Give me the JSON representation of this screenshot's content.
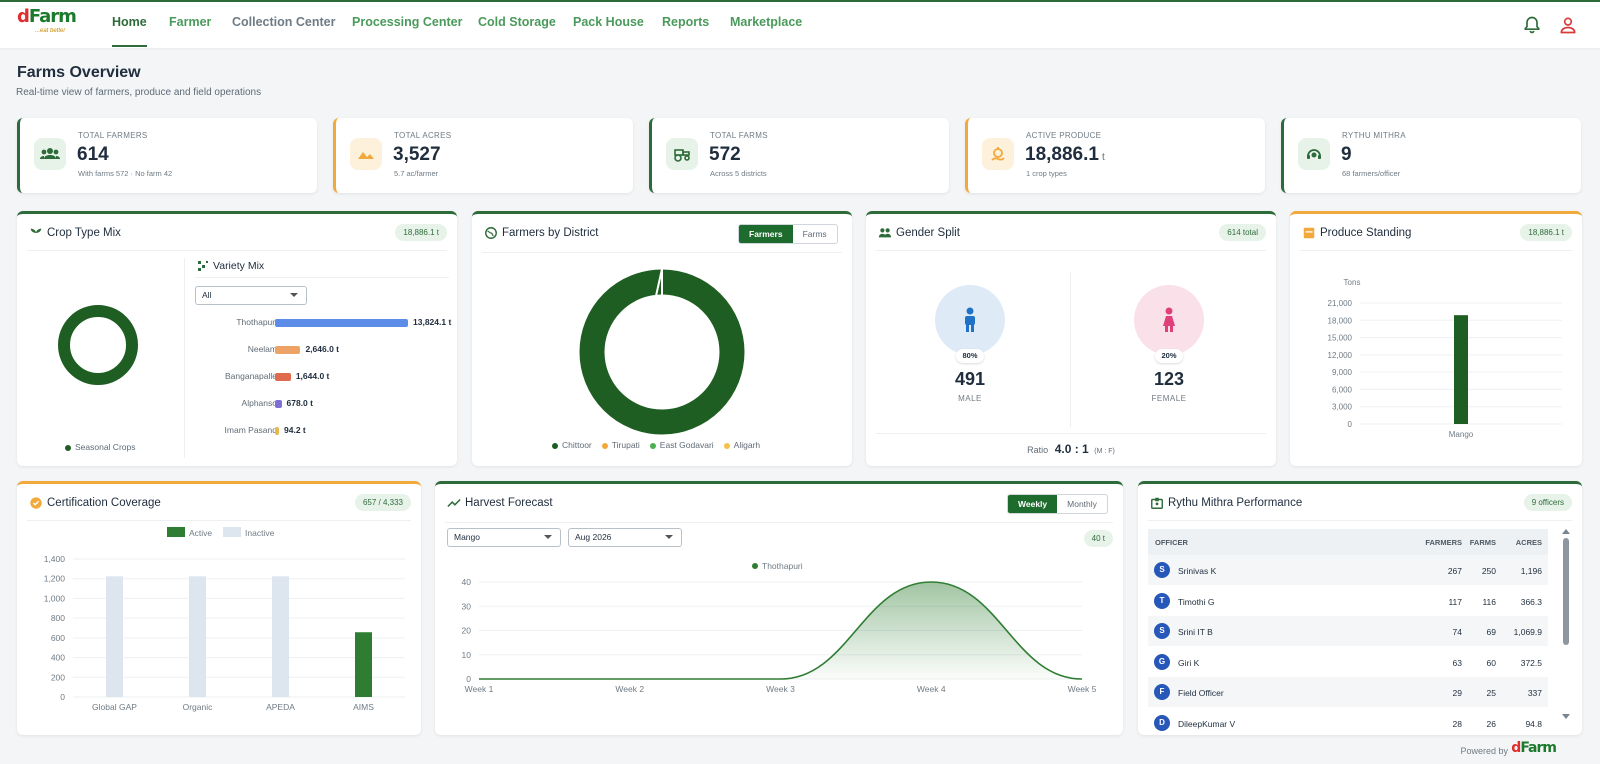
{
  "brand": {
    "logo_main": "dFarm",
    "logo_tag": "...eat better"
  },
  "nav": {
    "items": [
      "Home",
      "Farmer",
      "Collection Center",
      "Processing Center",
      "Cold Storage",
      "Pack House",
      "Reports",
      "Marketplace"
    ],
    "active": "Home"
  },
  "header": {
    "title": "Farms Overview",
    "subtitle": "Real-time view of farmers, produce and field operations"
  },
  "stats": [
    {
      "label": "TOTAL FARMERS",
      "value": "614",
      "unit": "",
      "sub": "With farms 572 · No farm 42",
      "icon": "users-icon",
      "accent": "#2e6b3a"
    },
    {
      "label": "TOTAL ACRES",
      "value": "3,527",
      "unit": "",
      "sub": "5.7 ac/farmer",
      "icon": "landscape-icon",
      "accent": "#f2a93b"
    },
    {
      "label": "TOTAL FARMS",
      "value": "572",
      "unit": "",
      "sub": "Across 5 districts",
      "icon": "tractor-icon",
      "accent": "#2e6b3a"
    },
    {
      "label": "ACTIVE PRODUCE",
      "value": "18,886.1",
      "unit": "t",
      "sub": "1 crop types",
      "icon": "produce-icon",
      "accent": "#f2a93b"
    },
    {
      "label": "RYTHU MITHRA",
      "value": "9",
      "unit": "",
      "sub": "68 farmers/officer",
      "icon": "support-agent-icon",
      "accent": "#2e6b3a"
    }
  ],
  "crop_mix": {
    "title": "Crop Type Mix",
    "badge": "18,886.1 t",
    "legend": "Seasonal Crops",
    "variety_title": "Variety Mix",
    "filter_value": "All",
    "varieties": [
      {
        "name": "Thothapuri",
        "value": 13824.1,
        "label": "13,824.1 t",
        "color": "#5b8de8"
      },
      {
        "name": "Neelam",
        "value": 2646.0,
        "label": "2,646.0 t",
        "color": "#eda365"
      },
      {
        "name": "Banganapalle",
        "value": 1644.0,
        "label": "1,644.0 t",
        "color": "#e06a4c"
      },
      {
        "name": "Alphanso",
        "value": 678.0,
        "label": "678.0 t",
        "color": "#7c6fd6"
      },
      {
        "name": "Imam Pasand",
        "value": 94.2,
        "label": "94.2 t",
        "color": "#e6b84a"
      }
    ]
  },
  "district": {
    "title": "Farmers by District",
    "toggle": [
      "Farmers",
      "Farms"
    ],
    "toggle_active": "Farmers",
    "legend": [
      {
        "name": "Chittoor",
        "color": "#1e5e23"
      },
      {
        "name": "Tirupati",
        "color": "#f2a93b"
      },
      {
        "name": "East Godavari",
        "color": "#4caf50"
      },
      {
        "name": "Aligarh",
        "color": "#f5c04a"
      }
    ]
  },
  "gender": {
    "title": "Gender Split",
    "badge": "614 total",
    "male": {
      "pct": "80%",
      "count": "491",
      "label": "MALE"
    },
    "female": {
      "pct": "20%",
      "count": "123",
      "label": "FEMALE"
    },
    "ratio_label": "Ratio",
    "ratio": "4.0 : 1",
    "ratio_note": "(M : F)"
  },
  "produce": {
    "title": "Produce Standing",
    "badge": "18,886.1 t"
  },
  "certification": {
    "title": "Certification Coverage",
    "badge": "657 / 4,333"
  },
  "harvest": {
    "title": "Harvest Forecast",
    "toggle": [
      "Weekly",
      "Monthly"
    ],
    "toggle_active": "Weekly",
    "crop_select": "Mango",
    "month_select": "Aug 2026",
    "badge": "40 t"
  },
  "rythu": {
    "title": "Rythu Mithra Performance",
    "badge": "9 officers",
    "columns": [
      "OFFICER",
      "FARMERS",
      "FARMS",
      "ACRES"
    ],
    "rows": [
      {
        "initial": "S",
        "name": "Srinivas K",
        "farmers": "267",
        "farms": "250",
        "acres": "1,196"
      },
      {
        "initial": "T",
        "name": "Timothi G",
        "farmers": "117",
        "farms": "116",
        "acres": "366.3"
      },
      {
        "initial": "S",
        "name": "Srini IT B",
        "farmers": "74",
        "farms": "69",
        "acres": "1,069.9"
      },
      {
        "initial": "G",
        "name": "Giri K",
        "farmers": "63",
        "farms": "60",
        "acres": "372.5"
      },
      {
        "initial": "F",
        "name": "Field Officer",
        "farmers": "29",
        "farms": "25",
        "acres": "337"
      },
      {
        "initial": "D",
        "name": "DileepKumar V",
        "farmers": "28",
        "farms": "26",
        "acres": "94.8"
      }
    ]
  },
  "footer": {
    "powered_by": "Powered by",
    "logo": "dFarm"
  },
  "chart_data": [
    {
      "type": "pie",
      "title": "Crop Type Mix",
      "labels": [
        "Seasonal Crops"
      ],
      "values": [
        18886.1
      ],
      "style": "donut"
    },
    {
      "type": "bar",
      "title": "Variety Mix",
      "categories": [
        "Thothapuri",
        "Neelam",
        "Banganapalle",
        "Alphanso",
        "Imam Pasand"
      ],
      "values": [
        13824.1,
        2646.0,
        1644.0,
        678.0,
        94.2
      ],
      "orientation": "horizontal",
      "unit": "t"
    },
    {
      "type": "pie",
      "title": "Farmers by District",
      "labels": [
        "Chittoor",
        "Tirupati",
        "East Godavari",
        "Aligarh"
      ],
      "values": [
        608,
        3,
        2,
        1
      ],
      "style": "donut"
    },
    {
      "type": "bar",
      "title": "Produce Standing",
      "ylabel": "Tons",
      "categories": [
        "Mango"
      ],
      "values": [
        18886.1
      ],
      "ylim": [
        0,
        21000
      ],
      "yticks": [
        0,
        3000,
        6000,
        9000,
        12000,
        15000,
        18000,
        21000
      ],
      "color": "#1e5e23"
    },
    {
      "type": "bar",
      "title": "Certification Coverage",
      "categories": [
        "Global GAP",
        "Organic",
        "APEDA",
        "AIMS"
      ],
      "series": [
        {
          "name": "Active",
          "values": [
            0,
            0,
            0,
            657
          ],
          "color": "#2e7d32"
        },
        {
          "name": "Inactive",
          "values": [
            1225,
            1225,
            1225,
            0
          ],
          "color": "#dde6ee"
        }
      ],
      "ylim": [
        0,
        1400
      ],
      "yticks": [
        0,
        200,
        400,
        600,
        800,
        1000,
        1200,
        1400
      ],
      "legend": "top"
    },
    {
      "type": "area",
      "title": "Harvest Forecast",
      "x": [
        "Week 1",
        "Week 2",
        "Week 3",
        "Week 4",
        "Week 5"
      ],
      "series": [
        {
          "name": "Thothapuri",
          "values": [
            0,
            0,
            0,
            40,
            0
          ]
        }
      ],
      "ylim": [
        0,
        40
      ],
      "yticks": [
        0,
        10,
        20,
        30,
        40
      ],
      "unit": "t"
    }
  ]
}
